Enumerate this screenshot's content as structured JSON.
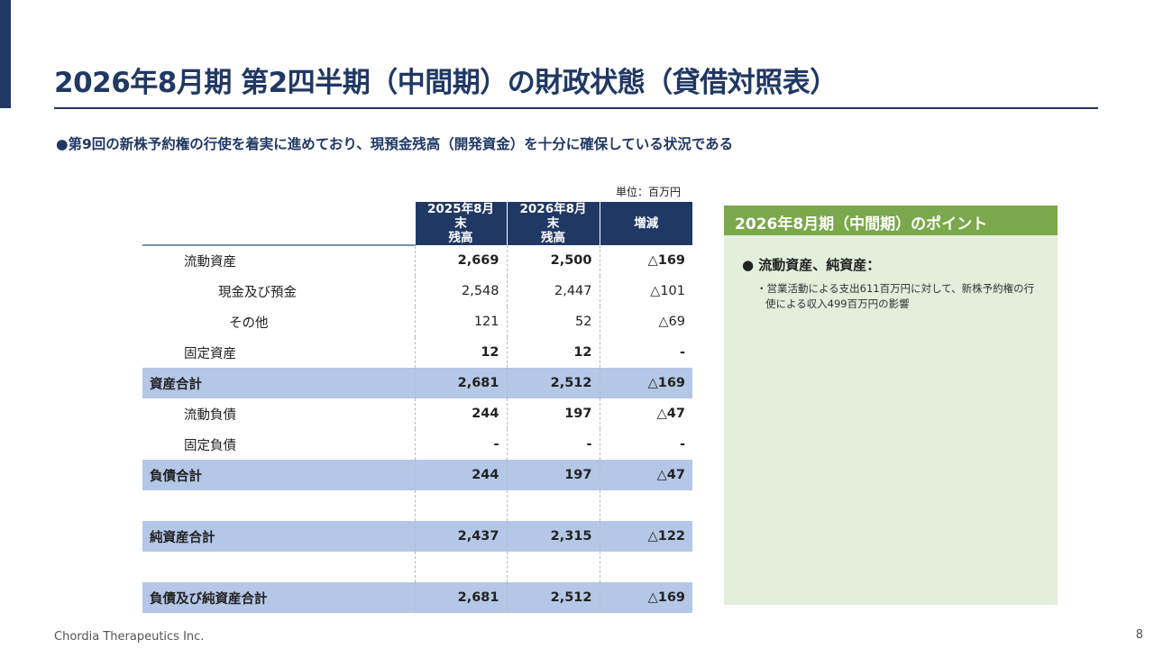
{
  "title": "2026年8月期 第2四半期（中間期）の財政状態（貸借対照表）",
  "subtitle": "●第9回の新株予約権の行使を着実に進めており、現預金残高（開発資金）を十分に確保している状況である",
  "unit": "単位：百万円",
  "table": {
    "headers": [
      "2025年8月末\n残高",
      "2026年8月末\n残高",
      "増減"
    ],
    "rows": [
      {
        "label": "流動資産",
        "v1": "2,669",
        "v2": "2,500",
        "d": "△169"
      },
      {
        "label": "現金及び預金",
        "v1": "2,548",
        "v2": "2,447",
        "d": "△101"
      },
      {
        "label": "その他",
        "v1": "121",
        "v2": "52",
        "d": "△69"
      },
      {
        "label": "固定資産",
        "v1": "12",
        "v2": "12",
        "d": "-"
      },
      {
        "label": "資産合計",
        "v1": "2,681",
        "v2": "2,512",
        "d": "△169"
      },
      {
        "label": "流動負債",
        "v1": "244",
        "v2": "197",
        "d": "△47"
      },
      {
        "label": "固定負債",
        "v1": "-",
        "v2": "-",
        "d": "-"
      },
      {
        "label": "負債合計",
        "v1": "244",
        "v2": "197",
        "d": "△47"
      },
      {
        "label": "純資産合計",
        "v1": "2,437",
        "v2": "2,315",
        "d": "△122"
      },
      {
        "label": "負債及び純資産合計",
        "v1": "2,681",
        "v2": "2,512",
        "d": "△169"
      }
    ]
  },
  "panel": {
    "title": "2026年8月期（中間期）のポイント",
    "bullet": "●  流動資産、純資産：",
    "text": "・営業活動による支出611百万円に対して、新株予約権の行使による収入499百万円の影響"
  },
  "footer": "Chordia Therapeutics Inc.",
  "page_number": "8",
  "colors": {
    "navy": "#203864",
    "highlight": "#b4c7e7",
    "green": "#7aa84a",
    "green_bg": "#e3eedb"
  }
}
